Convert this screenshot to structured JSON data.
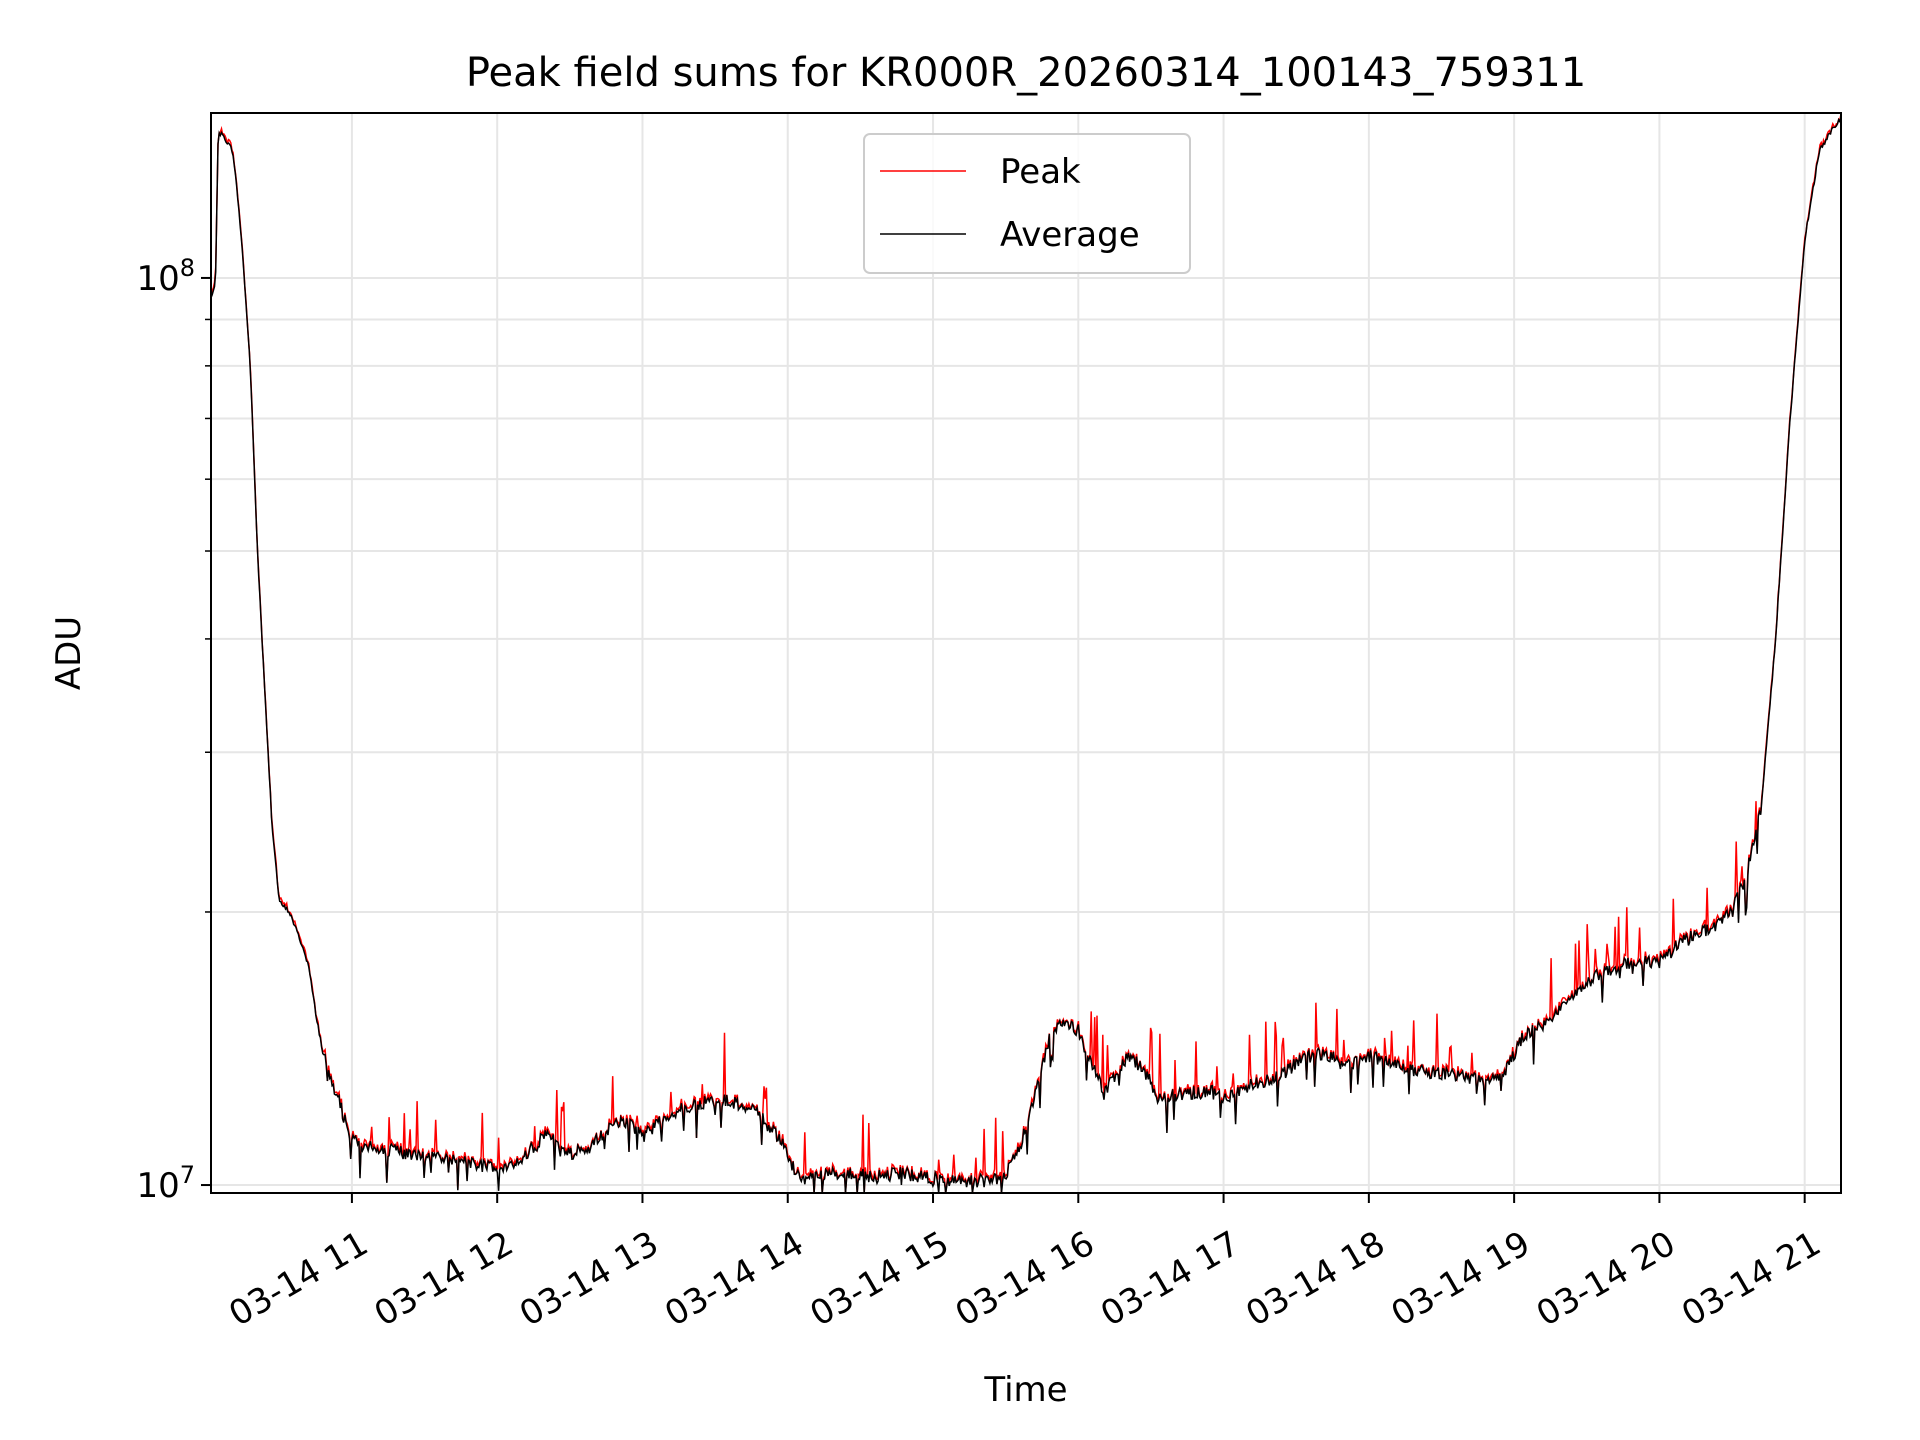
{
  "chart_data": {
    "type": "line",
    "title": "Peak field sums for KR000R_20260314_100143_759311",
    "xlabel": "Time",
    "ylabel": "ADU",
    "yscale": "log",
    "ylim": [
      9800000,
      152000000
    ],
    "xlim_hours": [
      10.03,
      21.25
    ],
    "grid": true,
    "legend_position": "upper center",
    "y_major_ticks": [
      {
        "value": 10000000,
        "base": "10",
        "exp": "7"
      },
      {
        "value": 100000000,
        "base": "10",
        "exp": "8"
      }
    ],
    "y_minor_ticks": [
      20000000,
      30000000,
      40000000,
      50000000,
      60000000,
      70000000,
      80000000,
      90000000
    ],
    "x_ticks": [
      {
        "hour": 11,
        "label": "03-14 11"
      },
      {
        "hour": 12,
        "label": "03-14 12"
      },
      {
        "hour": 13,
        "label": "03-14 13"
      },
      {
        "hour": 14,
        "label": "03-14 14"
      },
      {
        "hour": 15,
        "label": "03-14 15"
      },
      {
        "hour": 16,
        "label": "03-14 16"
      },
      {
        "hour": 17,
        "label": "03-14 17"
      },
      {
        "hour": 18,
        "label": "03-14 18"
      },
      {
        "hour": 19,
        "label": "03-14 19"
      },
      {
        "hour": 20,
        "label": "03-14 20"
      },
      {
        "hour": 21,
        "label": "03-14 21"
      }
    ],
    "series": [
      {
        "name": "Peak",
        "color": "#ff0000"
      },
      {
        "name": "Average",
        "color": "#000000"
      }
    ],
    "average_keypoints": [
      [
        10.03,
        95000000
      ],
      [
        10.06,
        98000000
      ],
      [
        10.08,
        145000000
      ],
      [
        10.12,
        143000000
      ],
      [
        10.18,
        138000000
      ],
      [
        10.22,
        120000000
      ],
      [
        10.25,
        105000000
      ],
      [
        10.3,
        80000000
      ],
      [
        10.35,
        50000000
      ],
      [
        10.4,
        35000000
      ],
      [
        10.45,
        25000000
      ],
      [
        10.5,
        20500000
      ],
      [
        10.57,
        20000000
      ],
      [
        10.65,
        18500000
      ],
      [
        10.7,
        17500000
      ],
      [
        10.75,
        15500000
      ],
      [
        10.8,
        14000000
      ],
      [
        10.9,
        12500000
      ],
      [
        11.0,
        11200000
      ],
      [
        11.1,
        11000000
      ],
      [
        11.3,
        10900000
      ],
      [
        11.5,
        10800000
      ],
      [
        11.7,
        10700000
      ],
      [
        11.9,
        10500000
      ],
      [
        12.1,
        10500000
      ],
      [
        12.25,
        11000000
      ],
      [
        12.35,
        11400000
      ],
      [
        12.45,
        10800000
      ],
      [
        12.6,
        10900000
      ],
      [
        12.75,
        11500000
      ],
      [
        12.9,
        11800000
      ],
      [
        13.0,
        11300000
      ],
      [
        13.1,
        11700000
      ],
      [
        13.2,
        12000000
      ],
      [
        13.4,
        12300000
      ],
      [
        13.6,
        12400000
      ],
      [
        13.8,
        12000000
      ],
      [
        13.95,
        11200000
      ],
      [
        14.05,
        10400000
      ],
      [
        14.1,
        10100000
      ],
      [
        14.2,
        10300000
      ],
      [
        14.4,
        10300000
      ],
      [
        14.6,
        10200000
      ],
      [
        14.8,
        10300000
      ],
      [
        15.0,
        10150000
      ],
      [
        15.2,
        10100000
      ],
      [
        15.4,
        10100000
      ],
      [
        15.5,
        10300000
      ],
      [
        15.6,
        11000000
      ],
      [
        15.7,
        12500000
      ],
      [
        15.8,
        14500000
      ],
      [
        15.9,
        15200000
      ],
      [
        16.0,
        14800000
      ],
      [
        16.1,
        13500000
      ],
      [
        16.18,
        12600000
      ],
      [
        16.25,
        13200000
      ],
      [
        16.35,
        13900000
      ],
      [
        16.45,
        13400000
      ],
      [
        16.55,
        12500000
      ],
      [
        16.7,
        12600000
      ],
      [
        16.9,
        12700000
      ],
      [
        17.0,
        12500000
      ],
      [
        17.2,
        12900000
      ],
      [
        17.4,
        13200000
      ],
      [
        17.55,
        13800000
      ],
      [
        17.7,
        14000000
      ],
      [
        17.85,
        13500000
      ],
      [
        18.0,
        13900000
      ],
      [
        18.15,
        13600000
      ],
      [
        18.3,
        13400000
      ],
      [
        18.5,
        13300000
      ],
      [
        18.65,
        13200000
      ],
      [
        18.8,
        13000000
      ],
      [
        18.95,
        13400000
      ],
      [
        19.05,
        14500000
      ],
      [
        19.2,
        15000000
      ],
      [
        19.4,
        16200000
      ],
      [
        19.6,
        17200000
      ],
      [
        19.8,
        17600000
      ],
      [
        20.0,
        17600000
      ],
      [
        20.15,
        18500000
      ],
      [
        20.35,
        19200000
      ],
      [
        20.5,
        20000000
      ],
      [
        20.6,
        22000000
      ],
      [
        20.7,
        26000000
      ],
      [
        20.8,
        40000000
      ],
      [
        20.9,
        70000000
      ],
      [
        21.0,
        110000000
      ],
      [
        21.1,
        138000000
      ],
      [
        21.18,
        145000000
      ],
      [
        21.25,
        150000000
      ]
    ]
  }
}
